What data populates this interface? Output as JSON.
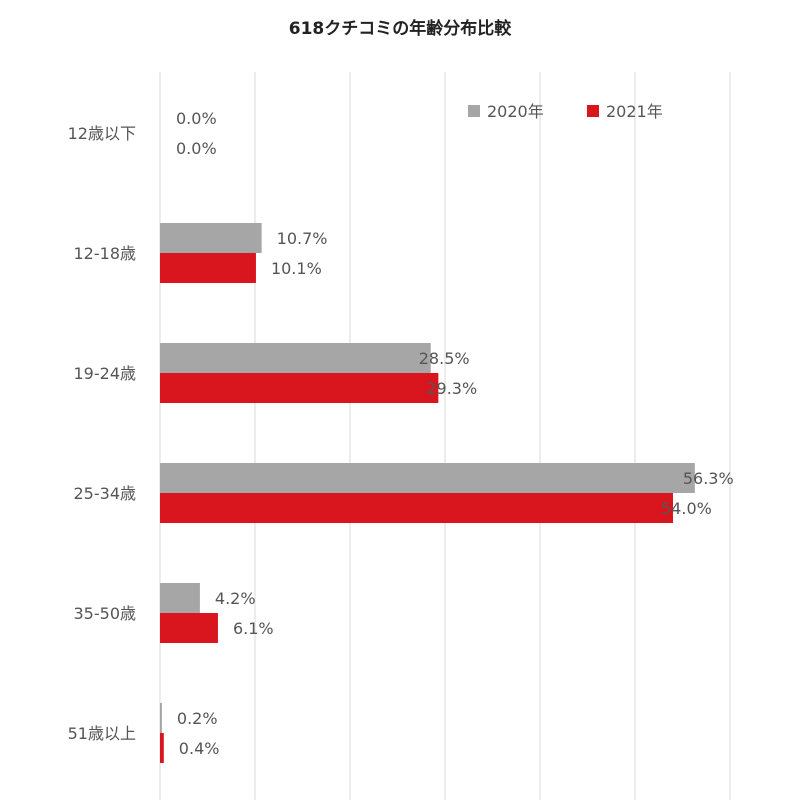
{
  "chart_data": {
    "type": "bar",
    "orientation": "horizontal",
    "title": "618クチコミの年齢分布比較",
    "categories": [
      "12歳以下",
      "12-18歳",
      "19-24歳",
      "25-34歳",
      "35-50歳",
      "51歳以上"
    ],
    "series": [
      {
        "name": "2020年",
        "color": "#a6a6a6",
        "values": [
          0.0,
          10.7,
          28.5,
          56.3,
          4.2,
          0.2
        ],
        "labels": [
          "0.0%",
          "10.7%",
          "28.5%",
          "56.3%",
          "4.2%",
          "0.2%"
        ]
      },
      {
        "name": "2021年",
        "color": "#d9161d",
        "values": [
          0.0,
          10.1,
          29.3,
          54.0,
          6.1,
          0.4
        ],
        "labels": [
          "0.0%",
          "10.1%",
          "29.3%",
          "54.0%",
          "6.1%",
          "0.4%"
        ]
      }
    ],
    "xlim": [
      0,
      60
    ],
    "grid": "vertical",
    "legend_position": "top-right",
    "unit": "%"
  }
}
